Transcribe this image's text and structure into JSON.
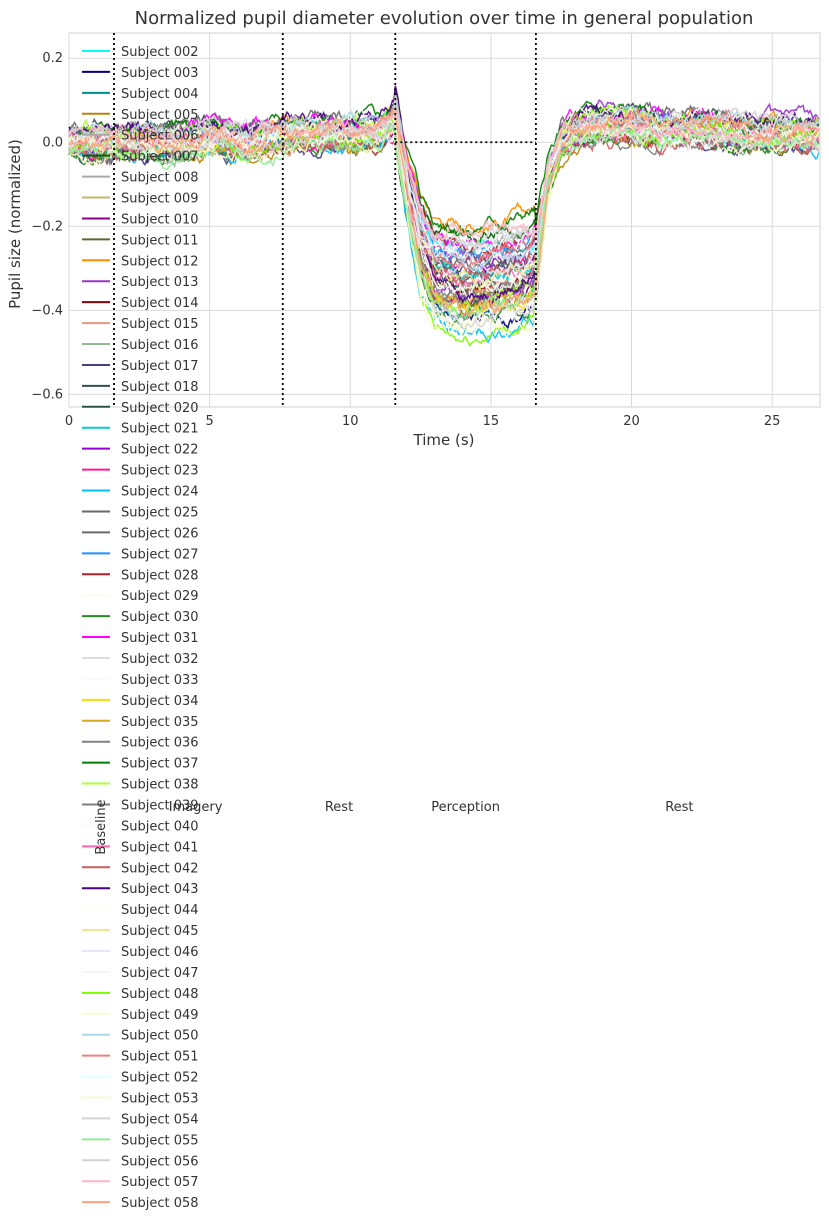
{
  "chart_data": {
    "type": "line",
    "title": "Normalized pupil diameter evolution over time in general population",
    "xlabel": "Time (s)",
    "ylabel": "Pupil size (normalized)",
    "xlim": [
      0,
      26.7
    ],
    "ylim": [
      -0.63,
      0.26
    ],
    "xticks": [
      0,
      5,
      10,
      15,
      20,
      25
    ],
    "yticks": [
      0.2,
      0.0,
      -0.2,
      -0.4,
      -0.6
    ],
    "grid": true,
    "legend_position": "left, extending below plot",
    "phase_boundaries": [
      1.6,
      7.6,
      11.6,
      16.6
    ],
    "baseline_segment": {
      "x": [
        11.6,
        16.6
      ],
      "y": 0.0
    },
    "phase_labels": [
      {
        "text": "Baseline",
        "x": 1.1,
        "rotated": true
      },
      {
        "text": "Imagery",
        "x": 4.5,
        "rotated": false
      },
      {
        "text": "Rest",
        "x": 9.6,
        "rotated": false
      },
      {
        "text": "Perception",
        "x": 14.1,
        "rotated": false
      },
      {
        "text": "Rest",
        "x": 21.7,
        "rotated": false
      }
    ],
    "series_profile": {
      "x": [
        0,
        1,
        2,
        3,
        4,
        5,
        6,
        7,
        8,
        9,
        10,
        11,
        11.6,
        12,
        12.5,
        13,
        14,
        15,
        16,
        16.6,
        17,
        17.5,
        18,
        19,
        20,
        21,
        22,
        23,
        24,
        25,
        26,
        26.7
      ],
      "y": [
        0.0,
        0.0,
        0.0,
        0.0,
        0.0,
        0.01,
        0.0,
        0.01,
        0.02,
        0.02,
        0.02,
        0.02,
        0.05,
        -0.1,
        -0.25,
        -0.32,
        -0.34,
        -0.33,
        -0.32,
        -0.3,
        -0.1,
        0.0,
        0.03,
        0.04,
        0.04,
        0.03,
        0.03,
        0.03,
        0.02,
        0.02,
        0.02,
        0.02
      ]
    },
    "series": [
      {
        "name": "Subject 002",
        "color": "#00ffff"
      },
      {
        "name": "Subject 003",
        "color": "#000080"
      },
      {
        "name": "Subject 004",
        "color": "#008b8b"
      },
      {
        "name": "Subject 005",
        "color": "#b8860b"
      },
      {
        "name": "Subject 006",
        "color": "#a9a9a9"
      },
      {
        "name": "Subject 007",
        "color": "#006400"
      },
      {
        "name": "Subject 008",
        "color": "#a9a9a9"
      },
      {
        "name": "Subject 009",
        "color": "#bdb76b"
      },
      {
        "name": "Subject 010",
        "color": "#8b008b"
      },
      {
        "name": "Subject 011",
        "color": "#556b2f"
      },
      {
        "name": "Subject 012",
        "color": "#ff8c00"
      },
      {
        "name": "Subject 013",
        "color": "#9932cc"
      },
      {
        "name": "Subject 014",
        "color": "#8b0000"
      },
      {
        "name": "Subject 015",
        "color": "#e9967a"
      },
      {
        "name": "Subject 016",
        "color": "#8fbc8f"
      },
      {
        "name": "Subject 017",
        "color": "#483d8b"
      },
      {
        "name": "Subject 018",
        "color": "#2f4f4f"
      },
      {
        "name": "Subject 020",
        "color": "#2f4f4f"
      },
      {
        "name": "Subject 021",
        "color": "#00ced1"
      },
      {
        "name": "Subject 022",
        "color": "#9400d3"
      },
      {
        "name": "Subject 023",
        "color": "#ff1493"
      },
      {
        "name": "Subject 024",
        "color": "#00bfff"
      },
      {
        "name": "Subject 025",
        "color": "#696969"
      },
      {
        "name": "Subject 026",
        "color": "#696969"
      },
      {
        "name": "Subject 027",
        "color": "#1e90ff"
      },
      {
        "name": "Subject 028",
        "color": "#b22222"
      },
      {
        "name": "Subject 029",
        "color": "#fffaf0"
      },
      {
        "name": "Subject 030",
        "color": "#228b22"
      },
      {
        "name": "Subject 031",
        "color": "#ff00ff"
      },
      {
        "name": "Subject 032",
        "color": "#dcdcdc"
      },
      {
        "name": "Subject 033",
        "color": "#f8f8ff"
      },
      {
        "name": "Subject 034",
        "color": "#ffd700"
      },
      {
        "name": "Subject 035",
        "color": "#daa520"
      },
      {
        "name": "Subject 036",
        "color": "#808080"
      },
      {
        "name": "Subject 037",
        "color": "#008000"
      },
      {
        "name": "Subject 038",
        "color": "#adff2f"
      },
      {
        "name": "Subject 039",
        "color": "#808080"
      },
      {
        "name": "Subject 040",
        "color": "#f0fff0"
      },
      {
        "name": "Subject 041",
        "color": "#ff69b4"
      },
      {
        "name": "Subject 042",
        "color": "#cd5c5c"
      },
      {
        "name": "Subject 043",
        "color": "#4b0082"
      },
      {
        "name": "Subject 044",
        "color": "#fffff0"
      },
      {
        "name": "Subject 045",
        "color": "#f0e68c"
      },
      {
        "name": "Subject 046",
        "color": "#e6e6fa"
      },
      {
        "name": "Subject 047",
        "color": "#fff0f5"
      },
      {
        "name": "Subject 048",
        "color": "#7cfc00"
      },
      {
        "name": "Subject 049",
        "color": "#fffacd"
      },
      {
        "name": "Subject 050",
        "color": "#add8e6"
      },
      {
        "name": "Subject 051",
        "color": "#f08080"
      },
      {
        "name": "Subject 052",
        "color": "#e0ffff"
      },
      {
        "name": "Subject 053",
        "color": "#fafad2"
      },
      {
        "name": "Subject 054",
        "color": "#d3d3d3"
      },
      {
        "name": "Subject 055",
        "color": "#90ee90"
      },
      {
        "name": "Subject 056",
        "color": "#d3d3d3"
      },
      {
        "name": "Subject 057",
        "color": "#ffb6c1"
      },
      {
        "name": "Subject 058",
        "color": "#ffa07a"
      }
    ]
  }
}
